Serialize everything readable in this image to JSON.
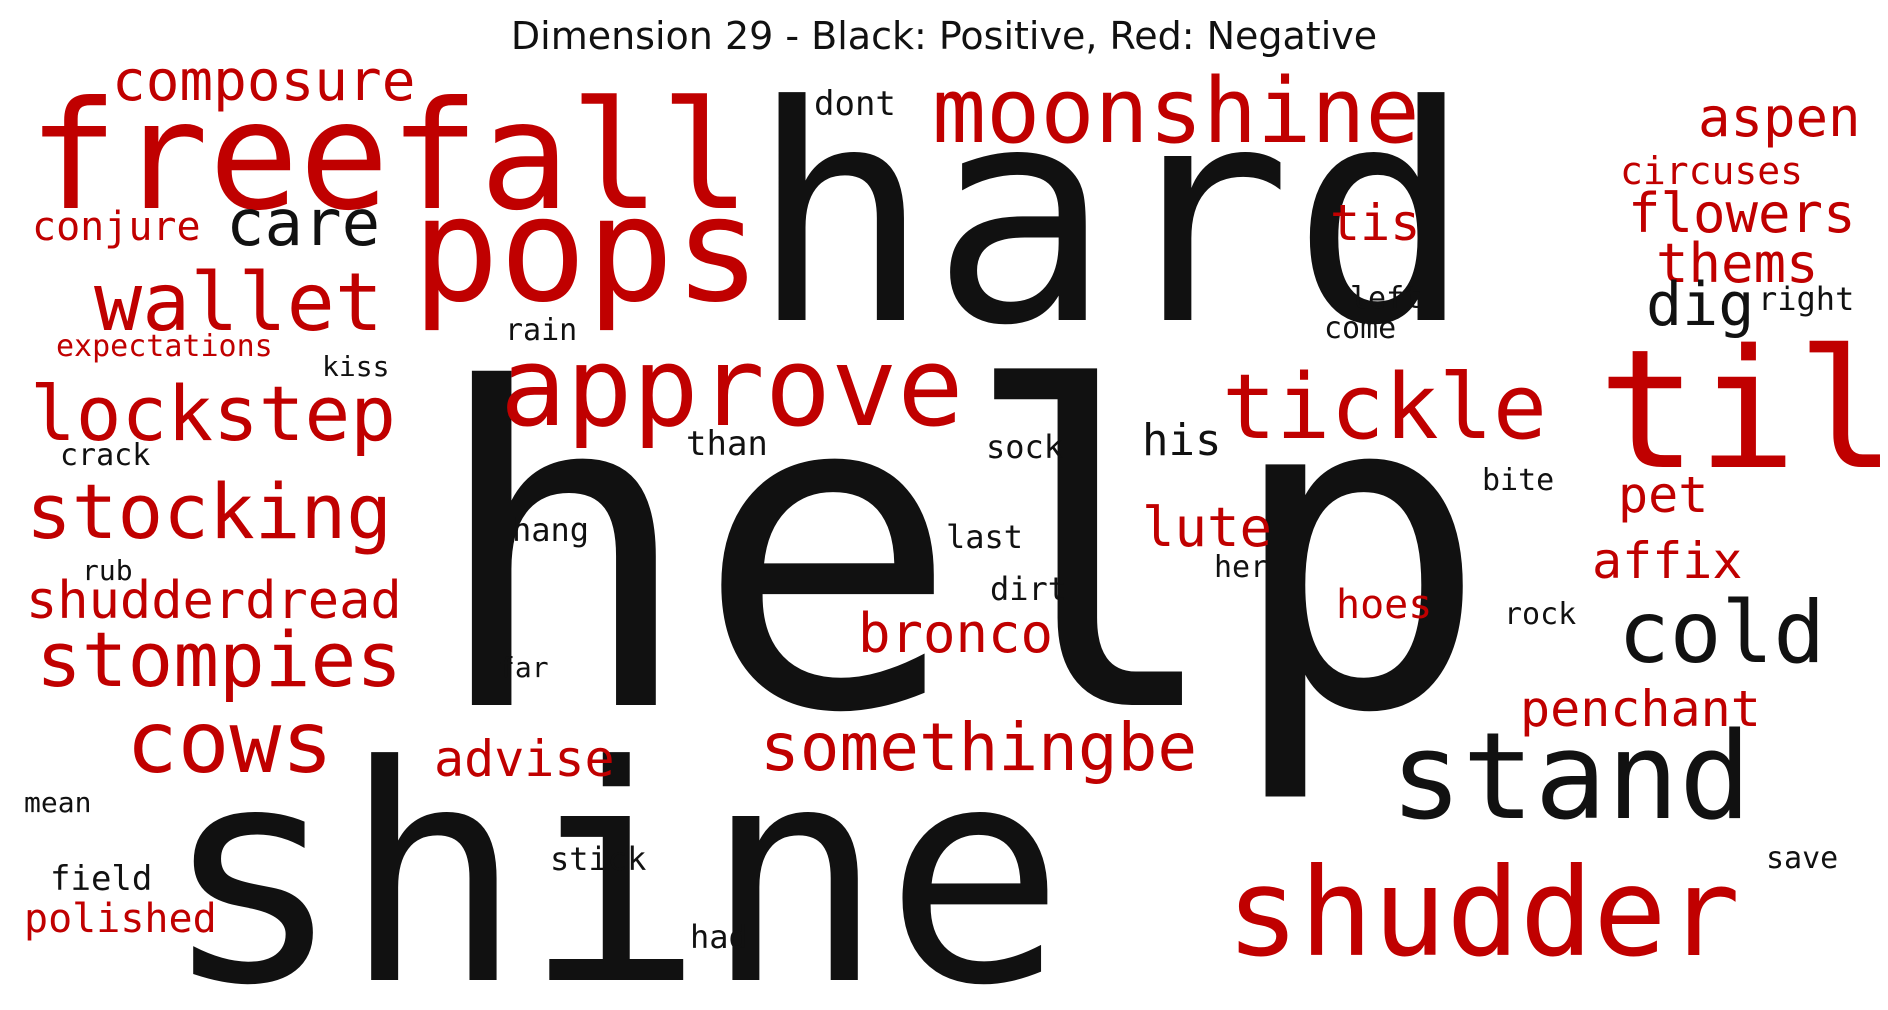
{
  "title": "Dimension 29 - Black: Positive, Red: Negative",
  "colors": {
    "positive": "#111111",
    "negative": "#c00000"
  },
  "legend": {
    "positive": "Black: Positive",
    "negative": "Red: Negative"
  },
  "words": [
    {
      "text": "help",
      "sign": "positive",
      "rank": 1
    },
    {
      "text": "hard",
      "sign": "positive",
      "rank": 2
    },
    {
      "text": "shine",
      "sign": "positive",
      "rank": 3
    },
    {
      "text": "freefall",
      "sign": "negative",
      "rank": 4
    },
    {
      "text": "pops",
      "sign": "negative",
      "rank": 5
    },
    {
      "text": "approve",
      "sign": "negative",
      "rank": 6
    },
    {
      "text": "til",
      "sign": "negative",
      "rank": 7
    },
    {
      "text": "stand",
      "sign": "positive",
      "rank": 8
    },
    {
      "text": "shudder",
      "sign": "negative",
      "rank": 9
    },
    {
      "text": "moonshine",
      "sign": "negative",
      "rank": 10
    },
    {
      "text": "tickle",
      "sign": "negative",
      "rank": 11
    },
    {
      "text": "cold",
      "sign": "positive",
      "rank": 12
    },
    {
      "text": "lockstep",
      "sign": "negative",
      "rank": 13
    },
    {
      "text": "stocking",
      "sign": "negative",
      "rank": 14
    },
    {
      "text": "stompies",
      "sign": "negative",
      "rank": 15
    },
    {
      "text": "wallet",
      "sign": "negative",
      "rank": 16
    },
    {
      "text": "cows",
      "sign": "negative",
      "rank": 17
    },
    {
      "text": "somethingbe",
      "sign": "negative",
      "rank": 18
    },
    {
      "text": "composure",
      "sign": "negative",
      "rank": 19
    },
    {
      "text": "shudderdread",
      "sign": "negative",
      "rank": 20
    },
    {
      "text": "care",
      "sign": "positive",
      "rank": 21
    },
    {
      "text": "aspen",
      "sign": "negative",
      "rank": 22
    },
    {
      "text": "flowers",
      "sign": "negative",
      "rank": 23
    },
    {
      "text": "bronco",
      "sign": "negative",
      "rank": 24
    },
    {
      "text": "penchant",
      "sign": "negative",
      "rank": 25
    },
    {
      "text": "tis",
      "sign": "negative",
      "rank": 26
    },
    {
      "text": "lute",
      "sign": "negative",
      "rank": 27
    },
    {
      "text": "advise",
      "sign": "negative",
      "rank": 28
    },
    {
      "text": "affix",
      "sign": "negative",
      "rank": 29
    },
    {
      "text": "thems",
      "sign": "negative",
      "rank": 30
    },
    {
      "text": "dig",
      "sign": "positive",
      "rank": 31
    },
    {
      "text": "pet",
      "sign": "negative",
      "rank": 32
    },
    {
      "text": "conjure",
      "sign": "negative",
      "rank": 33
    },
    {
      "text": "circuses",
      "sign": "negative",
      "rank": 34
    },
    {
      "text": "his",
      "sign": "positive",
      "rank": 35
    },
    {
      "text": "polished",
      "sign": "negative",
      "rank": 36
    },
    {
      "text": "hoes",
      "sign": "negative",
      "rank": 37
    },
    {
      "text": "expectations",
      "sign": "negative",
      "rank": 38
    },
    {
      "text": "dont",
      "sign": "positive",
      "rank": 39
    },
    {
      "text": "field",
      "sign": "positive",
      "rank": 40
    },
    {
      "text": "than",
      "sign": "positive",
      "rank": 41
    },
    {
      "text": "sock",
      "sign": "positive",
      "rank": 42
    },
    {
      "text": "hang",
      "sign": "positive",
      "rank": 43
    },
    {
      "text": "last",
      "sign": "positive",
      "rank": 44
    },
    {
      "text": "dirt",
      "sign": "positive",
      "rank": 45
    },
    {
      "text": "stick",
      "sign": "positive",
      "rank": 46
    },
    {
      "text": "had",
      "sign": "positive",
      "rank": 47
    },
    {
      "text": "rain",
      "sign": "positive",
      "rank": 48
    },
    {
      "text": "left",
      "sign": "positive",
      "rank": 49
    },
    {
      "text": "come",
      "sign": "positive",
      "rank": 50
    },
    {
      "text": "right",
      "sign": "positive",
      "rank": 51
    },
    {
      "text": "bite",
      "sign": "positive",
      "rank": 52
    },
    {
      "text": "rock",
      "sign": "positive",
      "rank": 53
    },
    {
      "text": "her",
      "sign": "positive",
      "rank": 54
    },
    {
      "text": "save",
      "sign": "positive",
      "rank": 55
    },
    {
      "text": "crack",
      "sign": "positive",
      "rank": 56
    },
    {
      "text": "kiss",
      "sign": "positive",
      "rank": 57
    },
    {
      "text": "rub",
      "sign": "positive",
      "rank": 58
    },
    {
      "text": "far",
      "sign": "positive",
      "rank": 59
    },
    {
      "text": "mean",
      "sign": "positive",
      "rank": 60
    }
  ]
}
